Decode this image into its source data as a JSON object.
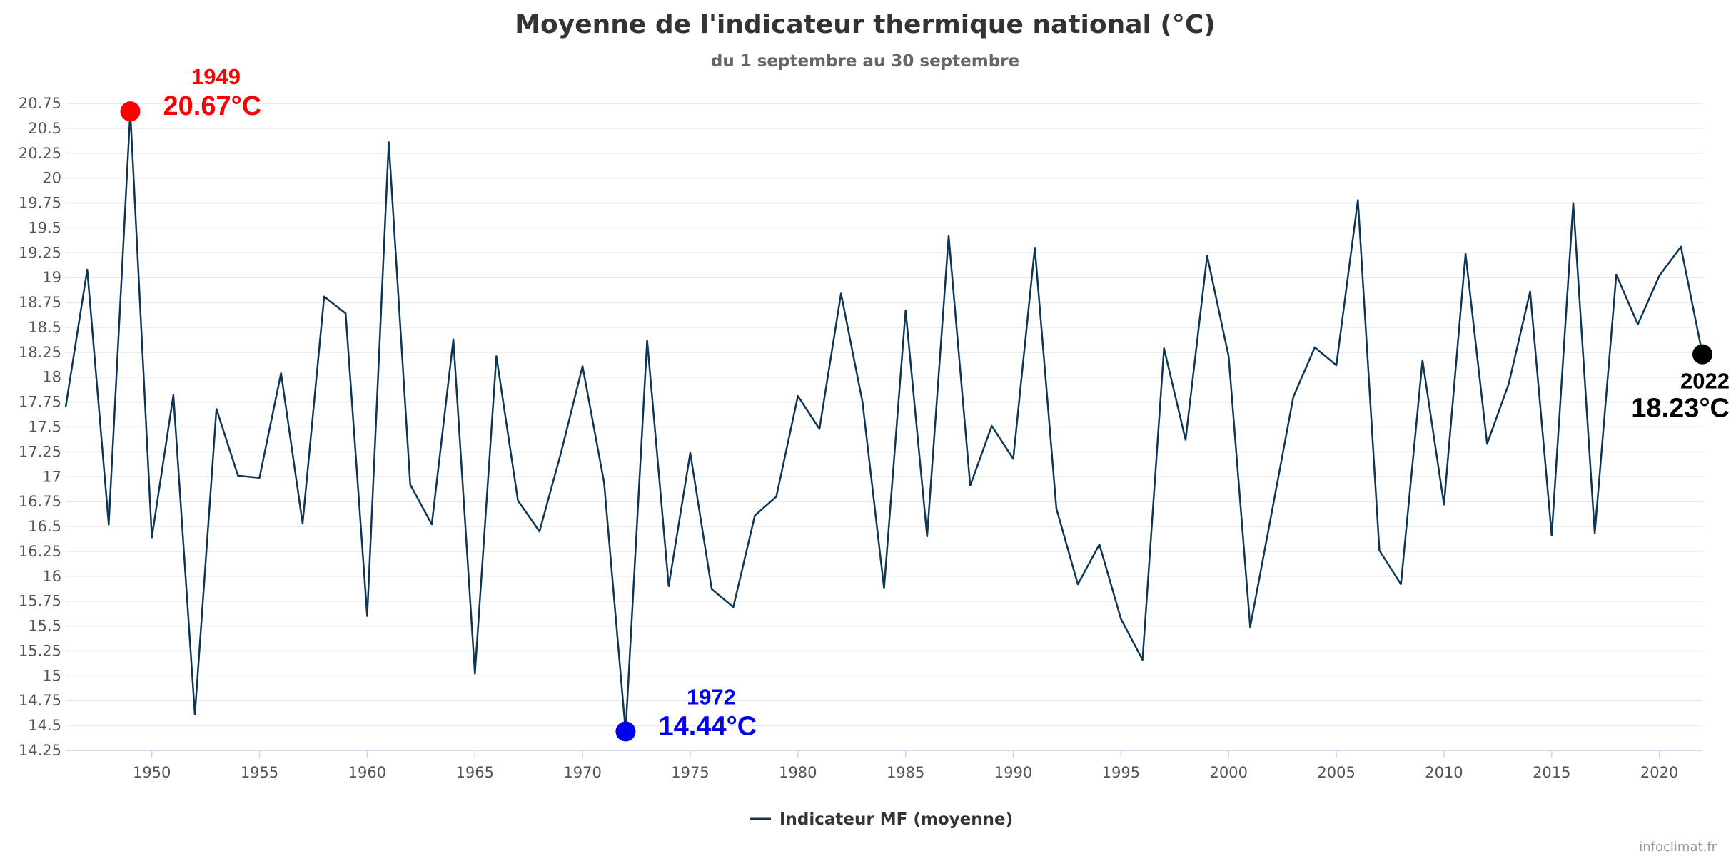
{
  "chart_data": {
    "type": "line",
    "title": "Moyenne de l'indicateur thermique national (°C)",
    "subtitle": "du 1 septembre au 30 septembre",
    "xlabel": "",
    "ylabel": "",
    "xlim": [
      1946,
      2022
    ],
    "ylim": [
      14.25,
      20.75
    ],
    "x_ticks": [
      "1950",
      "1955",
      "1960",
      "1965",
      "1970",
      "1975",
      "1980",
      "1985",
      "1990",
      "1995",
      "2000",
      "2005",
      "2010",
      "2015",
      "2020"
    ],
    "y_ticks": [
      "14.25",
      "14.5",
      "14.75",
      "15",
      "15.25",
      "15.5",
      "15.75",
      "16",
      "16.25",
      "16.5",
      "16.75",
      "17",
      "17.25",
      "17.5",
      "17.75",
      "18",
      "18.25",
      "18.5",
      "18.75",
      "19",
      "19.25",
      "19.5",
      "19.75",
      "20",
      "20.25",
      "20.5",
      "20.75"
    ],
    "grid": true,
    "legend_position": "bottom-center",
    "series": [
      {
        "name": "Indicateur MF (moyenne)",
        "color": "#0d3556",
        "x": [
          1946,
          1947,
          1948,
          1949,
          1950,
          1951,
          1952,
          1953,
          1954,
          1955,
          1956,
          1957,
          1958,
          1959,
          1960,
          1961,
          1962,
          1963,
          1964,
          1965,
          1966,
          1967,
          1968,
          1969,
          1970,
          1971,
          1972,
          1973,
          1974,
          1975,
          1976,
          1977,
          1978,
          1979,
          1980,
          1981,
          1982,
          1983,
          1984,
          1985,
          1986,
          1987,
          1988,
          1989,
          1990,
          1991,
          1992,
          1993,
          1994,
          1995,
          1996,
          1997,
          1998,
          1999,
          2000,
          2001,
          2002,
          2003,
          2004,
          2005,
          2006,
          2007,
          2008,
          2009,
          2010,
          2011,
          2012,
          2013,
          2014,
          2015,
          2016,
          2017,
          2018,
          2019,
          2020,
          2021,
          2022
        ],
        "values": [
          17.7,
          19.08,
          16.52,
          20.67,
          16.39,
          17.82,
          14.61,
          17.68,
          17.01,
          16.99,
          18.04,
          16.53,
          18.81,
          18.64,
          15.6,
          20.36,
          16.92,
          16.52,
          18.38,
          15.02,
          18.21,
          16.76,
          16.45,
          17.24,
          18.11,
          16.94,
          14.44,
          18.37,
          15.9,
          17.24,
          15.87,
          15.69,
          16.61,
          16.8,
          17.81,
          17.48,
          18.84,
          17.75,
          15.88,
          18.67,
          16.4,
          19.42,
          16.91,
          17.51,
          17.18,
          19.3,
          16.68,
          15.92,
          16.32,
          15.57,
          15.16,
          18.29,
          17.37,
          19.22,
          18.21,
          15.49,
          16.64,
          17.8,
          18.3,
          18.12,
          19.78,
          16.26,
          15.92,
          18.17,
          16.72,
          19.24,
          17.33,
          17.93,
          18.86,
          16.41,
          19.75,
          16.43,
          19.03,
          18.53,
          19.02,
          19.31,
          18.23
        ]
      }
    ],
    "annotations": [
      {
        "year": "1949",
        "value": "20.67°C",
        "x": 1949,
        "y": 20.67,
        "color": "#ff0000",
        "side": "right-above"
      },
      {
        "year": "1972",
        "value": "14.44°C",
        "x": 1972,
        "y": 14.44,
        "color": "#0000ee",
        "side": "right-above"
      },
      {
        "year": "2022",
        "value": "18.23°C",
        "x": 2022,
        "y": 18.23,
        "color": "#000000",
        "side": "left-below"
      }
    ],
    "credit": "infoclimat.fr"
  }
}
